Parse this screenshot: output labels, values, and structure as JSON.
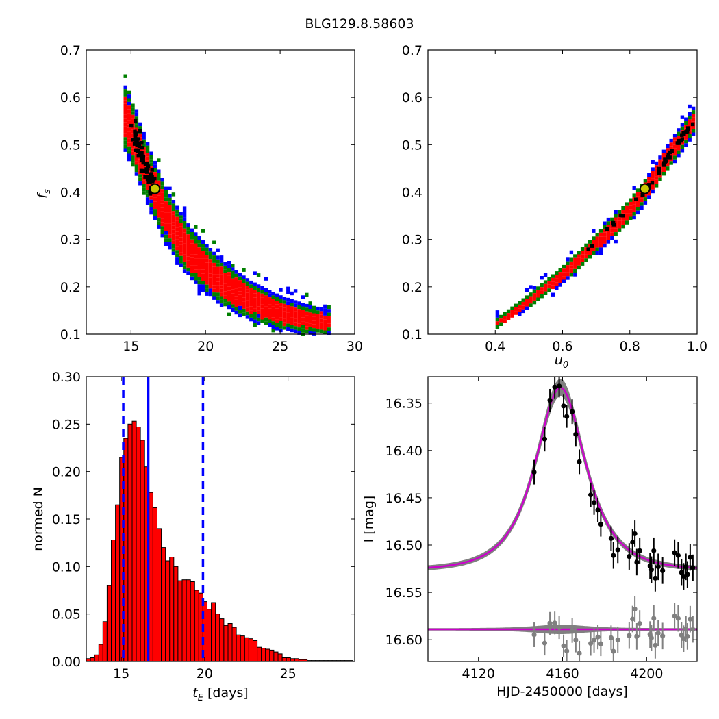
{
  "figure_title": "BLG129.8.58603",
  "chart_data": [
    {
      "id": "fs-vs-tE",
      "type": "heatmap",
      "xlabel": "",
      "ylabel": "f_s",
      "xlim": [
        12,
        30
      ],
      "ylim": [
        0.1,
        0.7
      ],
      "xticks": [
        15,
        20,
        25,
        30
      ],
      "yticks": [
        0.1,
        0.2,
        0.3,
        0.4,
        0.5,
        0.6,
        0.7
      ],
      "xtick_labels": [
        "15",
        "20",
        "25",
        "30"
      ],
      "ytick_labels": [
        "0.1",
        "0.2",
        "0.3",
        "0.4",
        "0.5",
        "0.6",
        "0.7"
      ],
      "confidence_colors": {
        "outer": "#0000ff",
        "middle": "#008000",
        "inner": "#ff0000",
        "best": "#000000"
      },
      "ridge": [
        [
          14.5,
          0.565
        ],
        [
          15.5,
          0.49
        ],
        [
          16.5,
          0.41
        ],
        [
          17.5,
          0.34
        ],
        [
          19,
          0.27
        ],
        [
          21,
          0.21
        ],
        [
          23,
          0.17
        ],
        [
          25,
          0.145
        ],
        [
          27,
          0.13
        ],
        [
          28.5,
          0.125
        ]
      ],
      "black_region": [
        [
          15.2,
          0.54
        ],
        [
          15.6,
          0.49
        ],
        [
          16.0,
          0.45
        ],
        [
          16.5,
          0.41
        ]
      ],
      "best_fit": {
        "x": 16.6,
        "y": 0.407,
        "face_color": "#c8c800"
      }
    },
    {
      "id": "fs-vs-u0",
      "type": "heatmap",
      "xlabel": "u_0",
      "ylabel": "",
      "xlim": [
        0.2,
        1.0
      ],
      "ylim": [
        0.1,
        0.7
      ],
      "xticks": [
        0.4,
        0.6,
        0.8,
        1.0
      ],
      "yticks": [
        0.1,
        0.2,
        0.3,
        0.4,
        0.5,
        0.6,
        0.7
      ],
      "xtick_labels": [
        "0.4",
        "0.6",
        "0.8",
        "1.0"
      ],
      "ytick_labels": [
        "0.1",
        "0.2",
        "0.3",
        "0.4",
        "0.5",
        "0.6",
        "0.7"
      ],
      "confidence_colors": {
        "outer": "#0000ff",
        "middle": "#008000",
        "inner": "#ff0000",
        "best": "#000000"
      },
      "ridge": [
        [
          0.4,
          0.12
        ],
        [
          0.5,
          0.17
        ],
        [
          0.6,
          0.225
        ],
        [
          0.7,
          0.29
        ],
        [
          0.8,
          0.36
        ],
        [
          0.85,
          0.405
        ],
        [
          0.9,
          0.46
        ],
        [
          0.95,
          0.51
        ],
        [
          1.0,
          0.56
        ]
      ],
      "black_region": [
        [
          0.64,
          0.26
        ],
        [
          0.78,
          0.35
        ],
        [
          0.85,
          0.405
        ],
        [
          0.92,
          0.48
        ],
        [
          0.99,
          0.55
        ]
      ],
      "best_fit": {
        "x": 0.845,
        "y": 0.407,
        "face_color": "#c8c800"
      }
    },
    {
      "id": "tE-histogram",
      "type": "bar",
      "xlabel": "t_E [days]",
      "ylabel": "normed N",
      "xlim": [
        12.9,
        29.0
      ],
      "ylim": [
        0.0,
        0.3
      ],
      "xticks": [
        15,
        20,
        25
      ],
      "yticks": [
        0.0,
        0.05,
        0.1,
        0.15,
        0.2,
        0.25,
        0.3
      ],
      "xtick_labels": [
        "15",
        "20",
        "25"
      ],
      "ytick_labels": [
        "0.00",
        "0.05",
        "0.10",
        "0.15",
        "0.20",
        "0.25",
        "0.30"
      ],
      "bar_color": "#ff0000",
      "bin_start": 12.9,
      "bin_width": 0.25,
      "values": [
        0.003,
        0.004,
        0.007,
        0.018,
        0.042,
        0.08,
        0.128,
        0.165,
        0.215,
        0.235,
        0.25,
        0.253,
        0.247,
        0.233,
        0.205,
        0.178,
        0.162,
        0.14,
        0.12,
        0.106,
        0.11,
        0.1,
        0.085,
        0.086,
        0.086,
        0.084,
        0.075,
        0.072,
        0.063,
        0.055,
        0.062,
        0.05,
        0.045,
        0.038,
        0.04,
        0.036,
        0.028,
        0.027,
        0.025,
        0.024,
        0.022,
        0.015,
        0.014,
        0.013,
        0.012,
        0.01,
        0.008,
        0.004,
        0.004,
        0.003,
        0.003,
        0.002,
        0.002,
        0.001,
        0.001,
        0.001,
        0.001,
        0.001,
        0.001,
        0.001,
        0.001,
        0.001,
        0.001,
        0.001
      ],
      "best_value_line": {
        "x": 16.62,
        "color": "#0000ff",
        "style": "solid"
      },
      "interval_lines": [
        {
          "x": 15.12,
          "color": "#0000ff",
          "style": "dashed"
        },
        {
          "x": 19.9,
          "color": "#0000ff",
          "style": "dashed"
        }
      ]
    },
    {
      "id": "light-curve",
      "type": "scatter",
      "xlabel": "HJD-2450000 [days]",
      "ylabel": "I [mag]",
      "xlim": [
        4096,
        4224
      ],
      "ylim": [
        16.623,
        16.322
      ],
      "y_inverted": true,
      "xticks": [
        4120,
        4160,
        4200
      ],
      "yticks": [
        16.35,
        16.4,
        16.45,
        16.5,
        16.55,
        16.6
      ],
      "xtick_labels": [
        "4120",
        "4160",
        "4200"
      ],
      "ytick_labels": [
        "16.35",
        "16.40",
        "16.45",
        "16.50",
        "16.55",
        "16.60"
      ],
      "model": {
        "t0": 4159,
        "tE": 16.6,
        "u0": 0.845,
        "fs": 0.407,
        "I_base": 16.527,
        "color": "#cc00cc",
        "band_color": "#808080"
      },
      "residual_baseline": 16.589,
      "observations": [
        {
          "x": 4146.5,
          "y": 16.423,
          "err": 0.013
        },
        {
          "x": 4151.5,
          "y": 16.388,
          "err": 0.013
        },
        {
          "x": 4154.0,
          "y": 16.347,
          "err": 0.012
        },
        {
          "x": 4156.3,
          "y": 16.333,
          "err": 0.012
        },
        {
          "x": 4158.4,
          "y": 16.332,
          "err": 0.012
        },
        {
          "x": 4160.5,
          "y": 16.353,
          "err": 0.012
        },
        {
          "x": 4162.0,
          "y": 16.364,
          "err": 0.012
        },
        {
          "x": 4164.6,
          "y": 16.359,
          "err": 0.013
        },
        {
          "x": 4166.3,
          "y": 16.383,
          "err": 0.013
        },
        {
          "x": 4168.0,
          "y": 16.412,
          "err": 0.013
        },
        {
          "x": 4173.4,
          "y": 16.447,
          "err": 0.013
        },
        {
          "x": 4175.0,
          "y": 16.455,
          "err": 0.013
        },
        {
          "x": 4176.8,
          "y": 16.463,
          "err": 0.013
        },
        {
          "x": 4178.2,
          "y": 16.478,
          "err": 0.013
        },
        {
          "x": 4183.1,
          "y": 16.493,
          "err": 0.013
        },
        {
          "x": 4184.2,
          "y": 16.511,
          "err": 0.014
        },
        {
          "x": 4186.3,
          "y": 16.505,
          "err": 0.014
        },
        {
          "x": 4191.7,
          "y": 16.512,
          "err": 0.014
        },
        {
          "x": 4193.3,
          "y": 16.497,
          "err": 0.014
        },
        {
          "x": 4194.4,
          "y": 16.488,
          "err": 0.014
        },
        {
          "x": 4195.3,
          "y": 16.518,
          "err": 0.014
        },
        {
          "x": 4196.7,
          "y": 16.506,
          "err": 0.014
        },
        {
          "x": 4201.6,
          "y": 16.522,
          "err": 0.014
        },
        {
          "x": 4202.3,
          "y": 16.526,
          "err": 0.014
        },
        {
          "x": 4203.4,
          "y": 16.506,
          "err": 0.014
        },
        {
          "x": 4204.1,
          "y": 16.535,
          "err": 0.014
        },
        {
          "x": 4205.5,
          "y": 16.523,
          "err": 0.014
        },
        {
          "x": 4207.6,
          "y": 16.527,
          "err": 0.014
        },
        {
          "x": 4213.3,
          "y": 16.508,
          "err": 0.014
        },
        {
          "x": 4215.0,
          "y": 16.511,
          "err": 0.014
        },
        {
          "x": 4216.6,
          "y": 16.529,
          "err": 0.014
        },
        {
          "x": 4217.6,
          "y": 16.533,
          "err": 0.014
        },
        {
          "x": 4218.7,
          "y": 16.523,
          "err": 0.014
        },
        {
          "x": 4219.4,
          "y": 16.531,
          "err": 0.014
        },
        {
          "x": 4220.7,
          "y": 16.513,
          "err": 0.014
        },
        {
          "x": 4222.0,
          "y": 16.524,
          "err": 0.014
        }
      ]
    }
  ]
}
